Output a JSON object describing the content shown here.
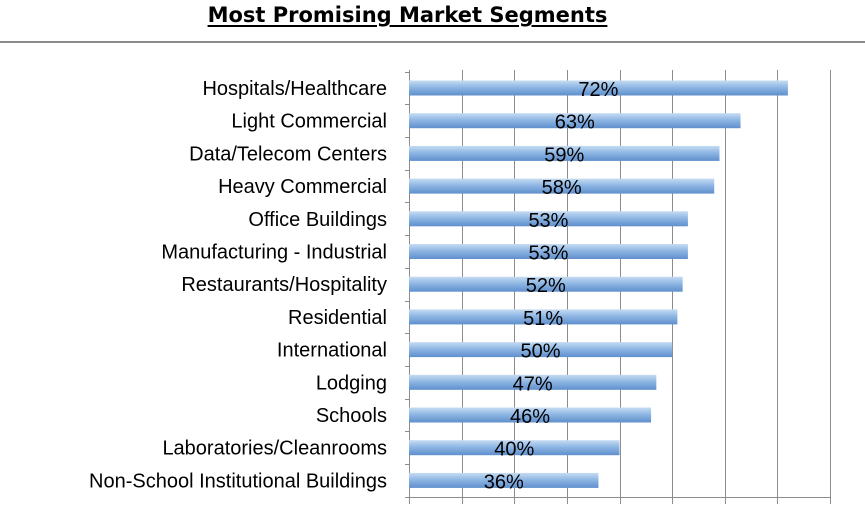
{
  "chart_data": {
    "type": "bar",
    "orientation": "horizontal",
    "title": "Most Promising Market Segments",
    "xlabel": "",
    "ylabel": "",
    "xlim": [
      0,
      80
    ],
    "grid": true,
    "categories": [
      "Hospitals/Healthcare",
      "Light Commercial",
      "Data/Telecom Centers",
      "Heavy Commercial",
      "Office Buildings",
      "Manufacturing - Industrial",
      "Restaurants/Hospitality",
      "Residential",
      "International",
      "Lodging",
      "Schools",
      "Laboratories/Cleanrooms",
      "Non-School Institutional Buildings"
    ],
    "values": [
      72,
      63,
      59,
      58,
      53,
      53,
      52,
      51,
      50,
      47,
      46,
      40,
      36
    ],
    "data_labels": [
      "72%",
      "63%",
      "59%",
      "58%",
      "53%",
      "53%",
      "52%",
      "51%",
      "50%",
      "47%",
      "46%",
      "40%",
      "36%"
    ],
    "colors": {
      "bar_light": "#c6dcf2",
      "bar_mid": "#8fb7e4",
      "bar_dark": "#5f8fcc",
      "grid": "#8c8c8c",
      "text": "#000000"
    }
  }
}
